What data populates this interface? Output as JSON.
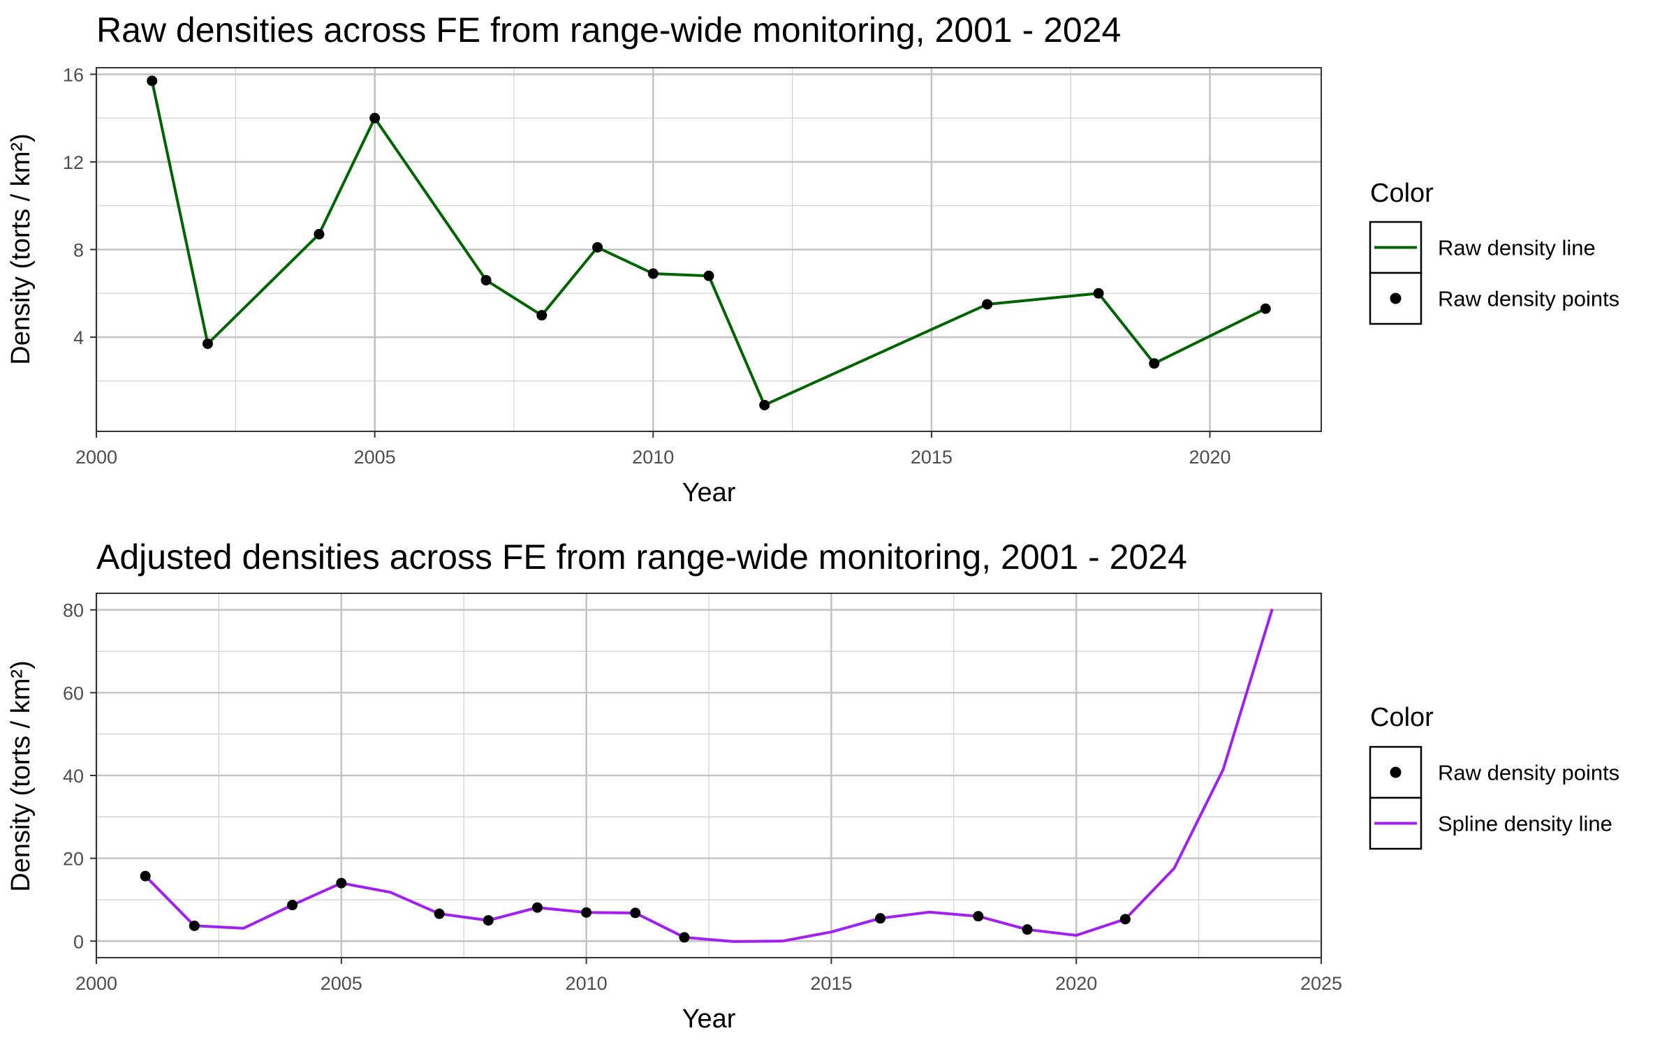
{
  "chart_data": [
    {
      "type": "line",
      "title": "Raw densities across FE from range-wide monitoring, 2001 - 2024",
      "xlabel": "Year",
      "ylabel": "Density (torts / km²)",
      "xlim": [
        2000,
        2022
      ],
      "ylim": [
        -0.3,
        16.3
      ],
      "xticks": [
        2000,
        2005,
        2010,
        2015,
        2020
      ],
      "xtick_labels": [
        "2000",
        "2005",
        "2010",
        "2015",
        "2020"
      ],
      "yticks": [
        4,
        8,
        12,
        16
      ],
      "ytick_labels": [
        "4",
        "8",
        "12",
        "16"
      ],
      "grid": true,
      "legend_position": "right",
      "legend_title": "Color",
      "series": [
        {
          "name": "Raw density line",
          "kind": "line",
          "color": "#006400",
          "x": [
            2001,
            2002,
            2004,
            2005,
            2007,
            2008,
            2009,
            2010,
            2011,
            2012,
            2016,
            2018,
            2019,
            2021
          ],
          "y": [
            15.7,
            3.7,
            8.7,
            14.0,
            6.6,
            5.0,
            8.1,
            6.9,
            6.8,
            0.9,
            5.5,
            6.0,
            2.8,
            5.3
          ]
        },
        {
          "name": "Raw density points",
          "kind": "points",
          "color": "#000000",
          "x": [
            2001,
            2002,
            2004,
            2005,
            2007,
            2008,
            2009,
            2010,
            2011,
            2012,
            2016,
            2018,
            2019,
            2021
          ],
          "y": [
            15.7,
            3.7,
            8.7,
            14.0,
            6.6,
            5.0,
            8.1,
            6.9,
            6.8,
            0.9,
            5.5,
            6.0,
            2.8,
            5.3
          ]
        }
      ],
      "legend": [
        {
          "label": "Raw density line",
          "kind": "line",
          "color": "#006400"
        },
        {
          "label": "Raw density points",
          "kind": "point",
          "color": "#000000"
        }
      ]
    },
    {
      "type": "line",
      "title": "Adjusted densities across FE from range-wide monitoring, 2001 - 2024",
      "xlabel": "Year",
      "ylabel": "Density (torts / km²)",
      "xlim": [
        2000,
        2025
      ],
      "ylim": [
        -4,
        84
      ],
      "xticks": [
        2000,
        2005,
        2010,
        2015,
        2020,
        2025
      ],
      "xtick_labels": [
        "2000",
        "2005",
        "2010",
        "2015",
        "2020",
        "2025"
      ],
      "yticks": [
        0,
        20,
        40,
        60,
        80
      ],
      "ytick_labels": [
        "0",
        "20",
        "40",
        "60",
        "80"
      ],
      "grid": true,
      "legend_position": "right",
      "legend_title": "Color",
      "series": [
        {
          "name": "Spline density line",
          "kind": "line",
          "color": "#A020F0",
          "x": [
            2001,
            2002,
            2003,
            2004,
            2005,
            2006,
            2007,
            2008,
            2009,
            2010,
            2011,
            2012,
            2013,
            2014,
            2015,
            2016,
            2017,
            2018,
            2019,
            2020,
            2021,
            2022,
            2023,
            2024
          ],
          "y": [
            15.7,
            3.7,
            3.1,
            8.7,
            14.0,
            11.8,
            6.6,
            5.0,
            8.1,
            6.9,
            6.8,
            0.9,
            -0.1,
            0.0,
            2.2,
            5.5,
            7.0,
            6.0,
            2.8,
            1.4,
            5.3,
            17.6,
            41.5,
            80.2
          ]
        },
        {
          "name": "Raw density points",
          "kind": "points",
          "color": "#000000",
          "x": [
            2001,
            2002,
            2004,
            2005,
            2007,
            2008,
            2009,
            2010,
            2011,
            2012,
            2016,
            2018,
            2019,
            2021
          ],
          "y": [
            15.7,
            3.7,
            8.7,
            14.0,
            6.6,
            5.0,
            8.1,
            6.9,
            6.8,
            0.9,
            5.5,
            6.0,
            2.8,
            5.3
          ]
        }
      ],
      "legend": [
        {
          "label": "Raw density points",
          "kind": "point",
          "color": "#000000"
        },
        {
          "label": "Spline density line",
          "kind": "line",
          "color": "#A020F0"
        }
      ]
    }
  ]
}
